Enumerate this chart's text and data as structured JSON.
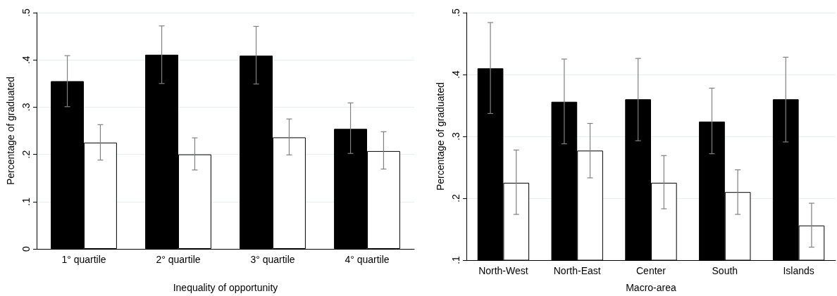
{
  "chart_data": [
    {
      "type": "bar",
      "xlabel": "Inequality of opportunity",
      "ylabel": "Percentage of graduated",
      "categories": [
        "1° quartile",
        "2° quartile",
        "3° quartile",
        "4° quartile"
      ],
      "ylim": [
        0,
        0.5
      ],
      "yticks": [
        0,
        {
          "value": 0.1,
          "label": ".1"
        },
        {
          "value": 0.2,
          "label": ".2"
        },
        {
          "value": 0.3,
          "label": ".3"
        },
        {
          "value": 0.4,
          "label": ".4"
        },
        {
          "value": 0.5,
          "label": ".5"
        }
      ],
      "grid": "y",
      "series": [
        {
          "color": "#000000",
          "values": [
            0.355,
            0.411,
            0.409,
            0.254
          ],
          "errors": [
            [
              0.301,
              0.409
            ],
            [
              0.35,
              0.472
            ],
            [
              0.349,
              0.471
            ],
            [
              0.202,
              0.309
            ]
          ]
        },
        {
          "color": "#ffffff",
          "values": [
            0.225,
            0.2,
            0.236,
            0.207
          ],
          "errors": [
            [
              0.188,
              0.263
            ],
            [
              0.167,
              0.235
            ],
            [
              0.199,
              0.275
            ],
            [
              0.169,
              0.248
            ]
          ]
        }
      ]
    },
    {
      "type": "bar",
      "xlabel": "Macro-area",
      "ylabel": "Percentage of graduated",
      "categories": [
        "North-West",
        "North-East",
        "Center",
        "South",
        "Islands"
      ],
      "ylim": [
        0.1,
        0.5
      ],
      "yticks": [
        {
          "value": 0.1,
          "label": ".1"
        },
        {
          "value": 0.2,
          "label": ".2"
        },
        {
          "value": 0.3,
          "label": ".3"
        },
        {
          "value": 0.4,
          "label": ".4"
        },
        {
          "value": 0.5,
          "label": ".5"
        }
      ],
      "grid": "y",
      "series": [
        {
          "color": "#000000",
          "values": [
            0.41,
            0.356,
            0.36,
            0.324,
            0.36
          ],
          "errors": [
            [
              0.337,
              0.484
            ],
            [
              0.288,
              0.425
            ],
            [
              0.293,
              0.426
            ],
            [
              0.272,
              0.378
            ],
            [
              0.291,
              0.428
            ]
          ]
        },
        {
          "color": "#ffffff",
          "values": [
            0.225,
            0.277,
            0.225,
            0.21,
            0.156
          ],
          "errors": [
            [
              0.174,
              0.278
            ],
            [
              0.233,
              0.321
            ],
            [
              0.183,
              0.269
            ],
            [
              0.174,
              0.246
            ],
            [
              0.121,
              0.192
            ]
          ]
        }
      ]
    }
  ]
}
